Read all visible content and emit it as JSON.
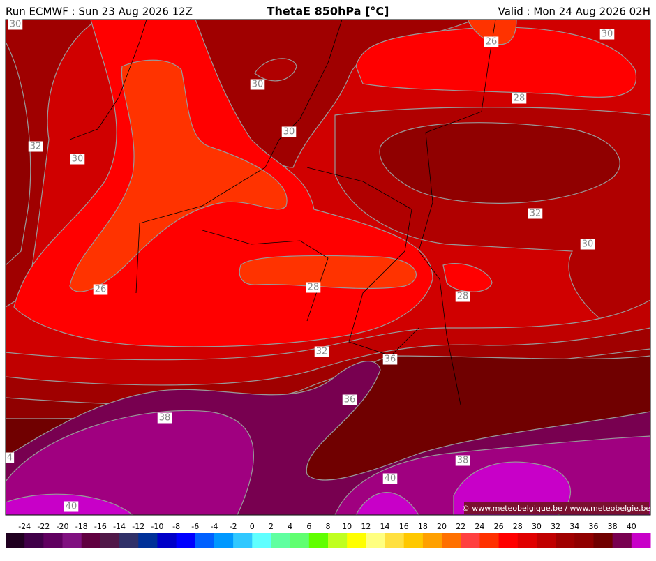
{
  "header": {
    "run": "Run ECMWF : Sun 23 Aug 2026 12Z",
    "title": "ThetaE 850hPa [°C]",
    "valid": "Valid : Mon 24 Aug 2026 02H"
  },
  "contour_labels": [
    30,
    26,
    30,
    30,
    28,
    30,
    32,
    30,
    32,
    30,
    26,
    28,
    28,
    32,
    36,
    36,
    38,
    4,
    38,
    40,
    40
  ],
  "colorbar": {
    "ticks": [
      -24,
      -22,
      -20,
      -18,
      -16,
      -14,
      -12,
      -10,
      -8,
      -6,
      -4,
      -2,
      0,
      2,
      4,
      6,
      8,
      10,
      12,
      14,
      16,
      18,
      20,
      22,
      24,
      26,
      28,
      30,
      32,
      34,
      36,
      38,
      40
    ],
    "colors": [
      "#200020",
      "#400048",
      "#600060",
      "#801080",
      "#600040",
      "#501848",
      "#303068",
      "#003098",
      "#0000c8",
      "#0000ff",
      "#0060ff",
      "#0098ff",
      "#30c8ff",
      "#60ffff",
      "#60ffa0",
      "#60ff70",
      "#60ff00",
      "#c0ff20",
      "#ffff00",
      "#ffff80",
      "#ffe040",
      "#ffc800",
      "#ffa000",
      "#ff7000",
      "#ff4040",
      "#ff3000",
      "#ff0000",
      "#e00000",
      "#c00000",
      "#a00000",
      "#900000",
      "#700000",
      "#780050",
      "#c800c8"
    ]
  },
  "copyright": "© www.meteobelgique.be / www.meteobelgie.be"
}
